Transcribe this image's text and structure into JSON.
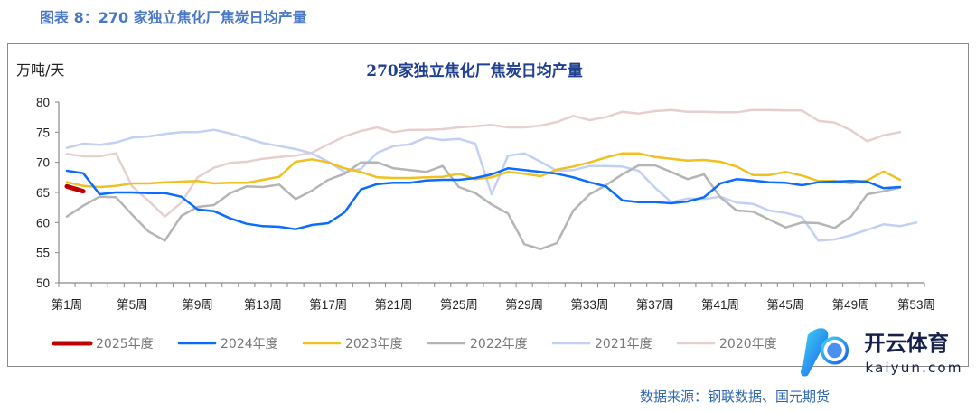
{
  "figure_title": "图表 8：270 家独立焦化厂焦炭日均产量",
  "source": "数据来源：钢联数据、国元期货",
  "watermark": {
    "text": "开云体育",
    "sub": "kaiyun.com"
  },
  "chart_data": {
    "type": "line",
    "title": "270家独立焦化厂焦炭日均产量",
    "ylabel": "万吨/天",
    "xlabel": "",
    "ylim": [
      50,
      80
    ],
    "yticks": [
      50,
      55,
      60,
      65,
      70,
      75,
      80
    ],
    "xtick_labels": [
      "第1周",
      "第5周",
      "第9周",
      "第13周",
      "第17周",
      "第21周",
      "第25周",
      "第29周",
      "第33周",
      "第37周",
      "第41周",
      "第45周",
      "第49周",
      "第53周"
    ],
    "xtick_weeks": [
      1,
      5,
      9,
      13,
      17,
      21,
      25,
      29,
      33,
      37,
      41,
      45,
      49,
      53
    ],
    "x_range_weeks": [
      1,
      53
    ],
    "legend_position": "bottom",
    "series": [
      {
        "name": "2020年度",
        "color": "#e8cfcf",
        "width": 2.5,
        "values": [
          71.4,
          71,
          71,
          71.5,
          66,
          63.6,
          61,
          63.3,
          67.5,
          69.1,
          69.9,
          70.1,
          70.6,
          70.9,
          71.1,
          71.6,
          73,
          74.3,
          75.2,
          75.8,
          75,
          75.4,
          75.4,
          75.5,
          75.8,
          76,
          76.2,
          75.8,
          75.8,
          76.1,
          76.7,
          77.7,
          77,
          77.5,
          78.4,
          78.1,
          78.5,
          78.7,
          78.4,
          78.4,
          78.3,
          78.3,
          78.7,
          78.7,
          78.6,
          78.6,
          76.9,
          76.6,
          75.3,
          73.5,
          74.5,
          75
        ]
      },
      {
        "name": "2021年度",
        "color": "#c3d0f5",
        "width": 2.5,
        "values": [
          72.4,
          73.1,
          72.9,
          73.3,
          74.1,
          74.3,
          74.7,
          75,
          75,
          75.4,
          74.8,
          74,
          73.2,
          72.7,
          72.2,
          71.5,
          70.1,
          68.4,
          68.9,
          71.6,
          72.7,
          73,
          74.1,
          73.7,
          73.9,
          73.1,
          64.7,
          71.1,
          71.5,
          70.1,
          68.6,
          68.7,
          69.4,
          69.4,
          69.3,
          68.6,
          65.8,
          63.4,
          64,
          63.9,
          64.3,
          63.3,
          63.1,
          62,
          61.6,
          60.9,
          57,
          57.2,
          57.9,
          58.8,
          59.7,
          59.4,
          60
        ]
      },
      {
        "name": "2022年度",
        "color": "#b5b5b5",
        "width": 2.5,
        "values": [
          61,
          62.8,
          64.3,
          64.2,
          61.3,
          58.5,
          57,
          61.1,
          62.6,
          62.9,
          64.9,
          66,
          65.9,
          66.3,
          63.9,
          65.3,
          67.1,
          68.1,
          70,
          70,
          69,
          68.7,
          68.4,
          69.4,
          65.9,
          64.9,
          63,
          61.5,
          56.4,
          55.6,
          56.6,
          62,
          64.7,
          66.2,
          68,
          69.5,
          69.5,
          68.4,
          67.2,
          68,
          64.2,
          62,
          61.8,
          60.5,
          59.2,
          60,
          59.9,
          59.1,
          61,
          64.7,
          65.2,
          65.8
        ]
      },
      {
        "name": "2023年度",
        "color": "#f0c020",
        "width": 2.5,
        "values": [
          66.7,
          66.1,
          65.9,
          66.1,
          66.5,
          66.5,
          66.7,
          66.8,
          66.9,
          66.5,
          66.6,
          66.6,
          67.1,
          67.6,
          70.1,
          70.5,
          70,
          69,
          68.4,
          67.5,
          67.4,
          67.4,
          67.5,
          67.6,
          68.1,
          67.2,
          67.5,
          68.4,
          68.1,
          67.7,
          68.8,
          69.3,
          70,
          70.8,
          71.5,
          71.5,
          70.9,
          70.6,
          70.3,
          70.4,
          70.1,
          69.3,
          67.9,
          67.9,
          68.4,
          67.8,
          66.9,
          66.9,
          66.5,
          67,
          68.5,
          67.1
        ]
      },
      {
        "name": "2024年度",
        "color": "#0a6cff",
        "width": 2.5,
        "values": [
          68.6,
          68.2,
          64.7,
          65,
          65,
          64.9,
          64.9,
          64.3,
          62.2,
          61.9,
          60.7,
          59.8,
          59.4,
          59.3,
          58.9,
          59.6,
          59.9,
          61.7,
          65.5,
          66.4,
          66.6,
          66.6,
          67,
          67.1,
          67.1,
          67.4,
          68,
          69,
          68.7,
          68.4,
          68.1,
          67.5,
          66.7,
          66,
          63.7,
          63.4,
          63.4,
          63.2,
          63.5,
          64.2,
          66.5,
          67.2,
          67,
          66.7,
          66.6,
          66.2,
          66.7,
          66.8,
          66.9,
          66.8,
          65.7,
          65.9
        ]
      },
      {
        "name": "2025年度",
        "color": "#c00000",
        "width": 5,
        "values": [
          66,
          65.2
        ]
      }
    ],
    "legend_order": [
      "2025年度",
      "2024年度",
      "2023年度",
      "2022年度",
      "2021年度",
      "2020年度"
    ]
  }
}
